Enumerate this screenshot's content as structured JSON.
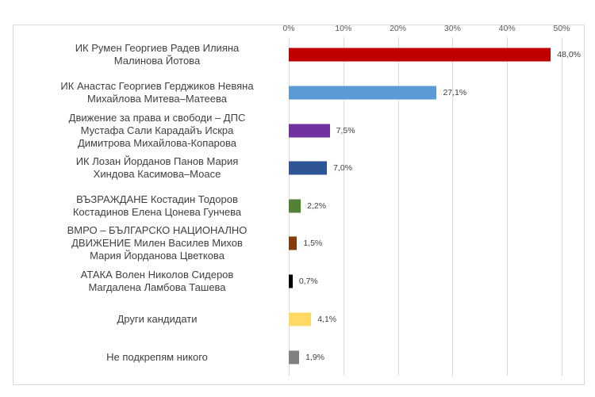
{
  "chart_data": {
    "type": "bar",
    "orientation": "horizontal",
    "title": "",
    "xlabel": "",
    "ylabel": "",
    "xlim": [
      0,
      50
    ],
    "x_ticks": [
      "0%",
      "10%",
      "20%",
      "30%",
      "40%",
      "50%"
    ],
    "grid": true,
    "legend": null,
    "categories": [
      "ИК Румен Георгиев Радев Илияна Малинова Йотова",
      "ИК Анастас Георгиев Герджиков Невяна Михайлова Митева–Матеева",
      "Движение за права и свободи – ДПС Мустафа Сали Карадайъ Искра Димитрова Михайлова-Копарова",
      "ИК Лозан Йорданов Панов Мария Хиндова Касимова–Моасе",
      "ВЪЗРАЖДАНЕ Костадин Тодоров Костадинов Елена Цонева Гунчева",
      "ВМРО – БЪЛГАРСКО НАЦИОНАЛНО ДВИЖЕНИЕ Милен Василев Михов Мария Йорданова Цветкова",
      "АТАКА Волен Николов Сидеров Магдалена Ламбова Ташева",
      "Други кандидати",
      "Не подкрепям никого"
    ],
    "values": [
      48.0,
      27.1,
      7.5,
      7.0,
      2.2,
      1.5,
      0.7,
      4.1,
      1.9
    ],
    "value_labels": [
      "48,0%",
      "27,1%",
      "7,5%",
      "7,0%",
      "2,2%",
      "1,5%",
      "0,7%",
      "4,1%",
      "1,9%"
    ],
    "colors": [
      "#c00000",
      "#5b9bd5",
      "#7030a0",
      "#2f5597",
      "#548235",
      "#843c0c",
      "#000000",
      "#ffd966",
      "#808080"
    ]
  },
  "rows": [
    {
      "lines": [
        "ИК Румен Георгиев Радев Илияна",
        "Малинова Йотова"
      ],
      "value": 48.0,
      "label": "48,0%",
      "color": "#c00000"
    },
    {
      "lines": [
        "ИК Анастас Георгиев Герджиков Невяна",
        "Михайлова Митева–Матеева"
      ],
      "value": 27.1,
      "label": "27,1%",
      "color": "#5b9bd5"
    },
    {
      "lines": [
        "Движение за права и свободи – ДПС",
        "Мустафа Сали Карадайъ Искра",
        "Димитрова Михайлова-Копарова"
      ],
      "value": 7.5,
      "label": "7,5%",
      "color": "#7030a0"
    },
    {
      "lines": [
        "ИК Лозан Йорданов Панов Мария",
        "Хиндова Касимова–Моасе"
      ],
      "value": 7.0,
      "label": "7,0%",
      "color": "#2f5597"
    },
    {
      "lines": [
        "ВЪЗРАЖДАНЕ Костадин Тодоров",
        "Костадинов Елена Цонева Гунчева"
      ],
      "value": 2.2,
      "label": "2,2%",
      "color": "#548235"
    },
    {
      "lines": [
        "ВМРО – БЪЛГАРСКО НАЦИОНАЛНО",
        "ДВИЖЕНИЕ Милен Василев Михов",
        "Мария Йорданова Цветкова"
      ],
      "value": 1.5,
      "label": "1,5%",
      "color": "#843c0c"
    },
    {
      "lines": [
        "АТАКА Волен Николов Сидеров",
        "Магдалена Ламбова Ташева"
      ],
      "value": 0.7,
      "label": "0,7%",
      "color": "#000000"
    },
    {
      "lines": [
        "Други кандидати"
      ],
      "value": 4.1,
      "label": "4,1%",
      "color": "#ffd966"
    },
    {
      "lines": [
        "Не подкрепям никого"
      ],
      "value": 1.9,
      "label": "1,9%",
      "color": "#808080"
    }
  ]
}
